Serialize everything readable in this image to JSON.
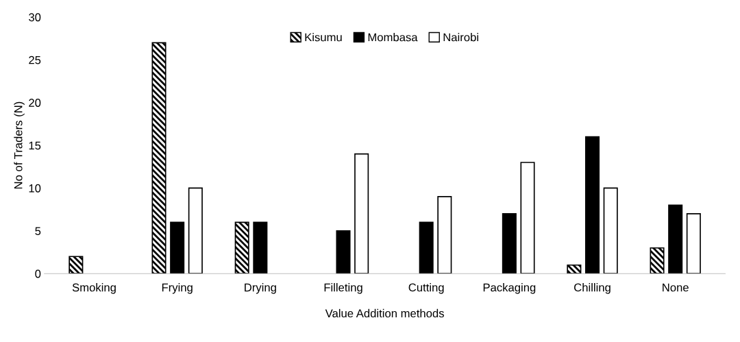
{
  "chart_data": {
    "type": "bar",
    "xlabel": "Value Addition methods",
    "ylabel": "No of Traders (N)",
    "categories": [
      "Smoking",
      "Frying",
      "Drying",
      "Filleting",
      "Cutting",
      "Packaging",
      "Chilling",
      "None"
    ],
    "series": [
      {
        "name": "Kisumu",
        "color": "#000000",
        "values": [
          2,
          27,
          6,
          0,
          0,
          0,
          1,
          3
        ]
      },
      {
        "name": "Mombasa",
        "color": "#000000",
        "values": [
          0,
          6,
          6,
          5,
          6,
          7,
          16,
          8
        ]
      },
      {
        "name": "Nairobi",
        "color": "#ffffff",
        "values": [
          0,
          10,
          0,
          14,
          9,
          13,
          10,
          7
        ]
      }
    ],
    "ylim": [
      0,
      30
    ],
    "yticks": [
      0,
      5,
      10,
      15,
      20,
      25,
      30
    ],
    "grid": false,
    "legend": "top"
  }
}
